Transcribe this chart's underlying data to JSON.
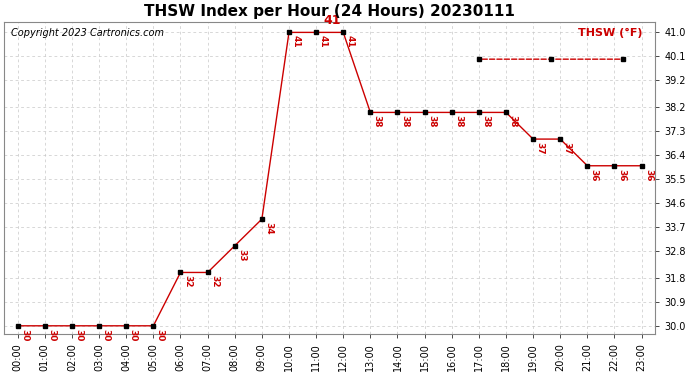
{
  "title": "THSW Index per Hour (24 Hours) 20230111",
  "copyright": "Copyright 2023 Cartronics.com",
  "legend_label": "THSW (°F)",
  "hours": [
    0,
    1,
    2,
    3,
    4,
    5,
    6,
    7,
    8,
    9,
    10,
    11,
    12,
    13,
    14,
    15,
    16,
    17,
    18,
    19,
    20,
    21,
    22,
    23
  ],
  "values": [
    30,
    30,
    30,
    30,
    30,
    30,
    32,
    32,
    33,
    34,
    41,
    41,
    41,
    38,
    38,
    38,
    38,
    38,
    38,
    37,
    37,
    36,
    36,
    36
  ],
  "ylim": [
    29.7,
    41.4
  ],
  "yticks": [
    30.0,
    30.9,
    31.8,
    32.8,
    33.7,
    34.6,
    35.5,
    36.4,
    37.3,
    38.2,
    39.2,
    40.1,
    41.0
  ],
  "line_color": "#cc0000",
  "marker_color": "#000000",
  "grid_color": "#c8c8c8",
  "background_color": "#ffffff",
  "title_fontsize": 11,
  "copyright_fontsize": 7,
  "tick_fontsize": 7,
  "annotation_fontsize": 6.5,
  "legend_fontsize": 8,
  "legend_color": "#cc0000",
  "max_label": "41",
  "max_hour": 12,
  "fig_width": 6.9,
  "fig_height": 3.75
}
